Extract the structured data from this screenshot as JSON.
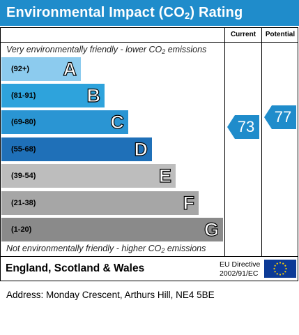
{
  "title_prefix": "Environmental Impact (CO",
  "title_sub": "2",
  "title_suffix": ") Rating",
  "columns": {
    "current": "Current",
    "potential": "Potential"
  },
  "top_caption": {
    "before": "Very environmentally friendly - lower CO",
    "sub": "2",
    "after": " emissions"
  },
  "bottom_caption": {
    "before": "Not environmentally friendly - higher CO",
    "sub": "2",
    "after": " emissions"
  },
  "bands": [
    {
      "range": "(92+)",
      "letter": "A",
      "color": "#8ccbee"
    },
    {
      "range": "(81-91)",
      "letter": "B",
      "color": "#2ea3dc"
    },
    {
      "range": "(69-80)",
      "letter": "C",
      "color": "#2a95d3"
    },
    {
      "range": "(55-68)",
      "letter": "D",
      "color": "#1f70b8"
    },
    {
      "range": "(39-54)",
      "letter": "E",
      "color": "#bdbdbd"
    },
    {
      "range": "(21-38)",
      "letter": "F",
      "color": "#a6a6a6"
    },
    {
      "range": "(1-20)",
      "letter": "G",
      "color": "#8a8a8a"
    }
  ],
  "current_rating": 73,
  "potential_rating": 77,
  "arrow_color": "#1f8ccb",
  "footer": {
    "region": "England, Scotland & Wales",
    "directive_line1": "EU Directive",
    "directive_line2": "2002/91/EC",
    "flag_icon": "eu-flag-icon"
  },
  "address": "Address: Monday Crescent, Arthurs Hill, NE4 5BE"
}
